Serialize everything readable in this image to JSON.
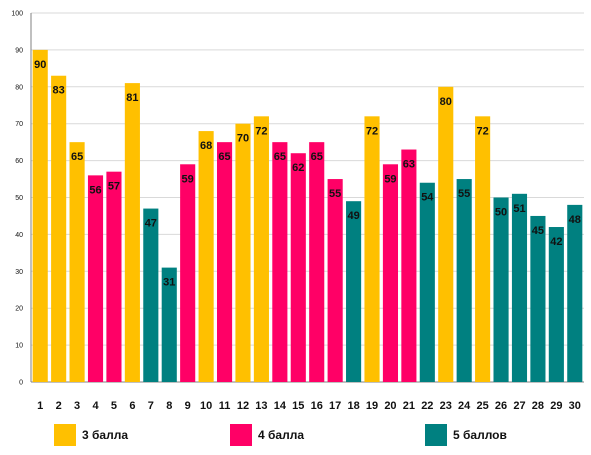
{
  "colors": {
    "score3": "#FFC000",
    "score4": "#FF0066",
    "score5": "#008080",
    "gridline": "#D9D9D9",
    "axis": "#808080",
    "text": "#111111"
  },
  "chart_data": {
    "type": "bar",
    "title": "",
    "xlabel": "",
    "ylabel": "",
    "ylim": [
      0,
      100
    ],
    "yticks": [
      0,
      10,
      20,
      30,
      40,
      50,
      60,
      70,
      80,
      90,
      100
    ],
    "grid": true,
    "legend_position": "bottom",
    "categories": [
      "1",
      "2",
      "3",
      "4",
      "5",
      "6",
      "7",
      "8",
      "9",
      "10",
      "11",
      "12",
      "13",
      "14",
      "15",
      "16",
      "17",
      "18",
      "19",
      "20",
      "21",
      "22",
      "23",
      "24",
      "25",
      "26",
      "27",
      "28",
      "29",
      "30"
    ],
    "values": [
      90,
      83,
      65,
      56,
      57,
      81,
      47,
      31,
      59,
      68,
      65,
      70,
      72,
      65,
      62,
      65,
      55,
      49,
      72,
      59,
      63,
      54,
      80,
      55,
      72,
      50,
      51,
      45,
      42,
      48
    ],
    "groups": [
      "score3",
      "score3",
      "score3",
      "score4",
      "score4",
      "score3",
      "score5",
      "score5",
      "score4",
      "score3",
      "score4",
      "score3",
      "score3",
      "score4",
      "score4",
      "score4",
      "score4",
      "score5",
      "score3",
      "score4",
      "score4",
      "score5",
      "score3",
      "score5",
      "score3",
      "score5",
      "score5",
      "score5",
      "score5",
      "score5"
    ],
    "legend": [
      {
        "key": "score3",
        "label": "3 балла"
      },
      {
        "key": "score4",
        "label": "4 балла"
      },
      {
        "key": "score5",
        "label": "5 баллов"
      }
    ]
  }
}
